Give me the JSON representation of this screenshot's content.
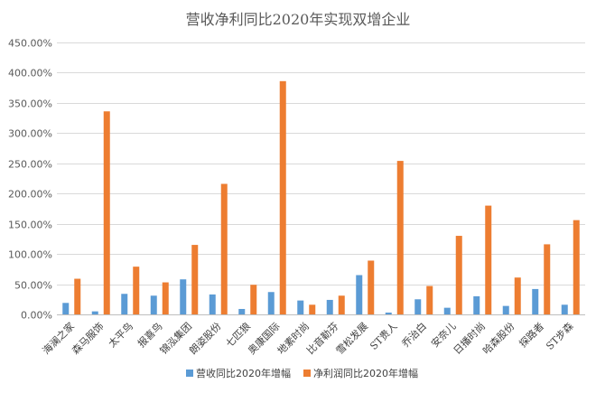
{
  "chart_data": {
    "type": "bar",
    "title": "营收净利同比2020年实现双增企业",
    "xlabel": "",
    "ylabel": "",
    "ylim": [
      0,
      450
    ],
    "y_tick_step": 50,
    "y_tick_format": "percent_2dp",
    "grid": true,
    "legend_position": "bottom",
    "categories": [
      "海澜之家",
      "森马服饰",
      "太平鸟",
      "报喜鸟",
      "锦泓集团",
      "朗姿股份",
      "七匹狼",
      "奥康国际",
      "地素时尚",
      "比音勒芬",
      "雪松发展",
      "ST贵人",
      "乔治白",
      "安奈儿",
      "日播时尚",
      "哈森股份",
      "探路者",
      "ST步森"
    ],
    "series": [
      {
        "name": "营收同比2020年增幅",
        "color": "#5B9BD5",
        "values": [
          19,
          5,
          34,
          31,
          58,
          33,
          9,
          37,
          23,
          24,
          65,
          3,
          25,
          11,
          30,
          14,
          42,
          16
        ]
      },
      {
        "name": "净利润同比2020年增幅",
        "color": "#ED7D31",
        "values": [
          59,
          336,
          79,
          53,
          115,
          216,
          49,
          386,
          16,
          31,
          89,
          254,
          47,
          130,
          180,
          61,
          116,
          156
        ]
      }
    ]
  }
}
